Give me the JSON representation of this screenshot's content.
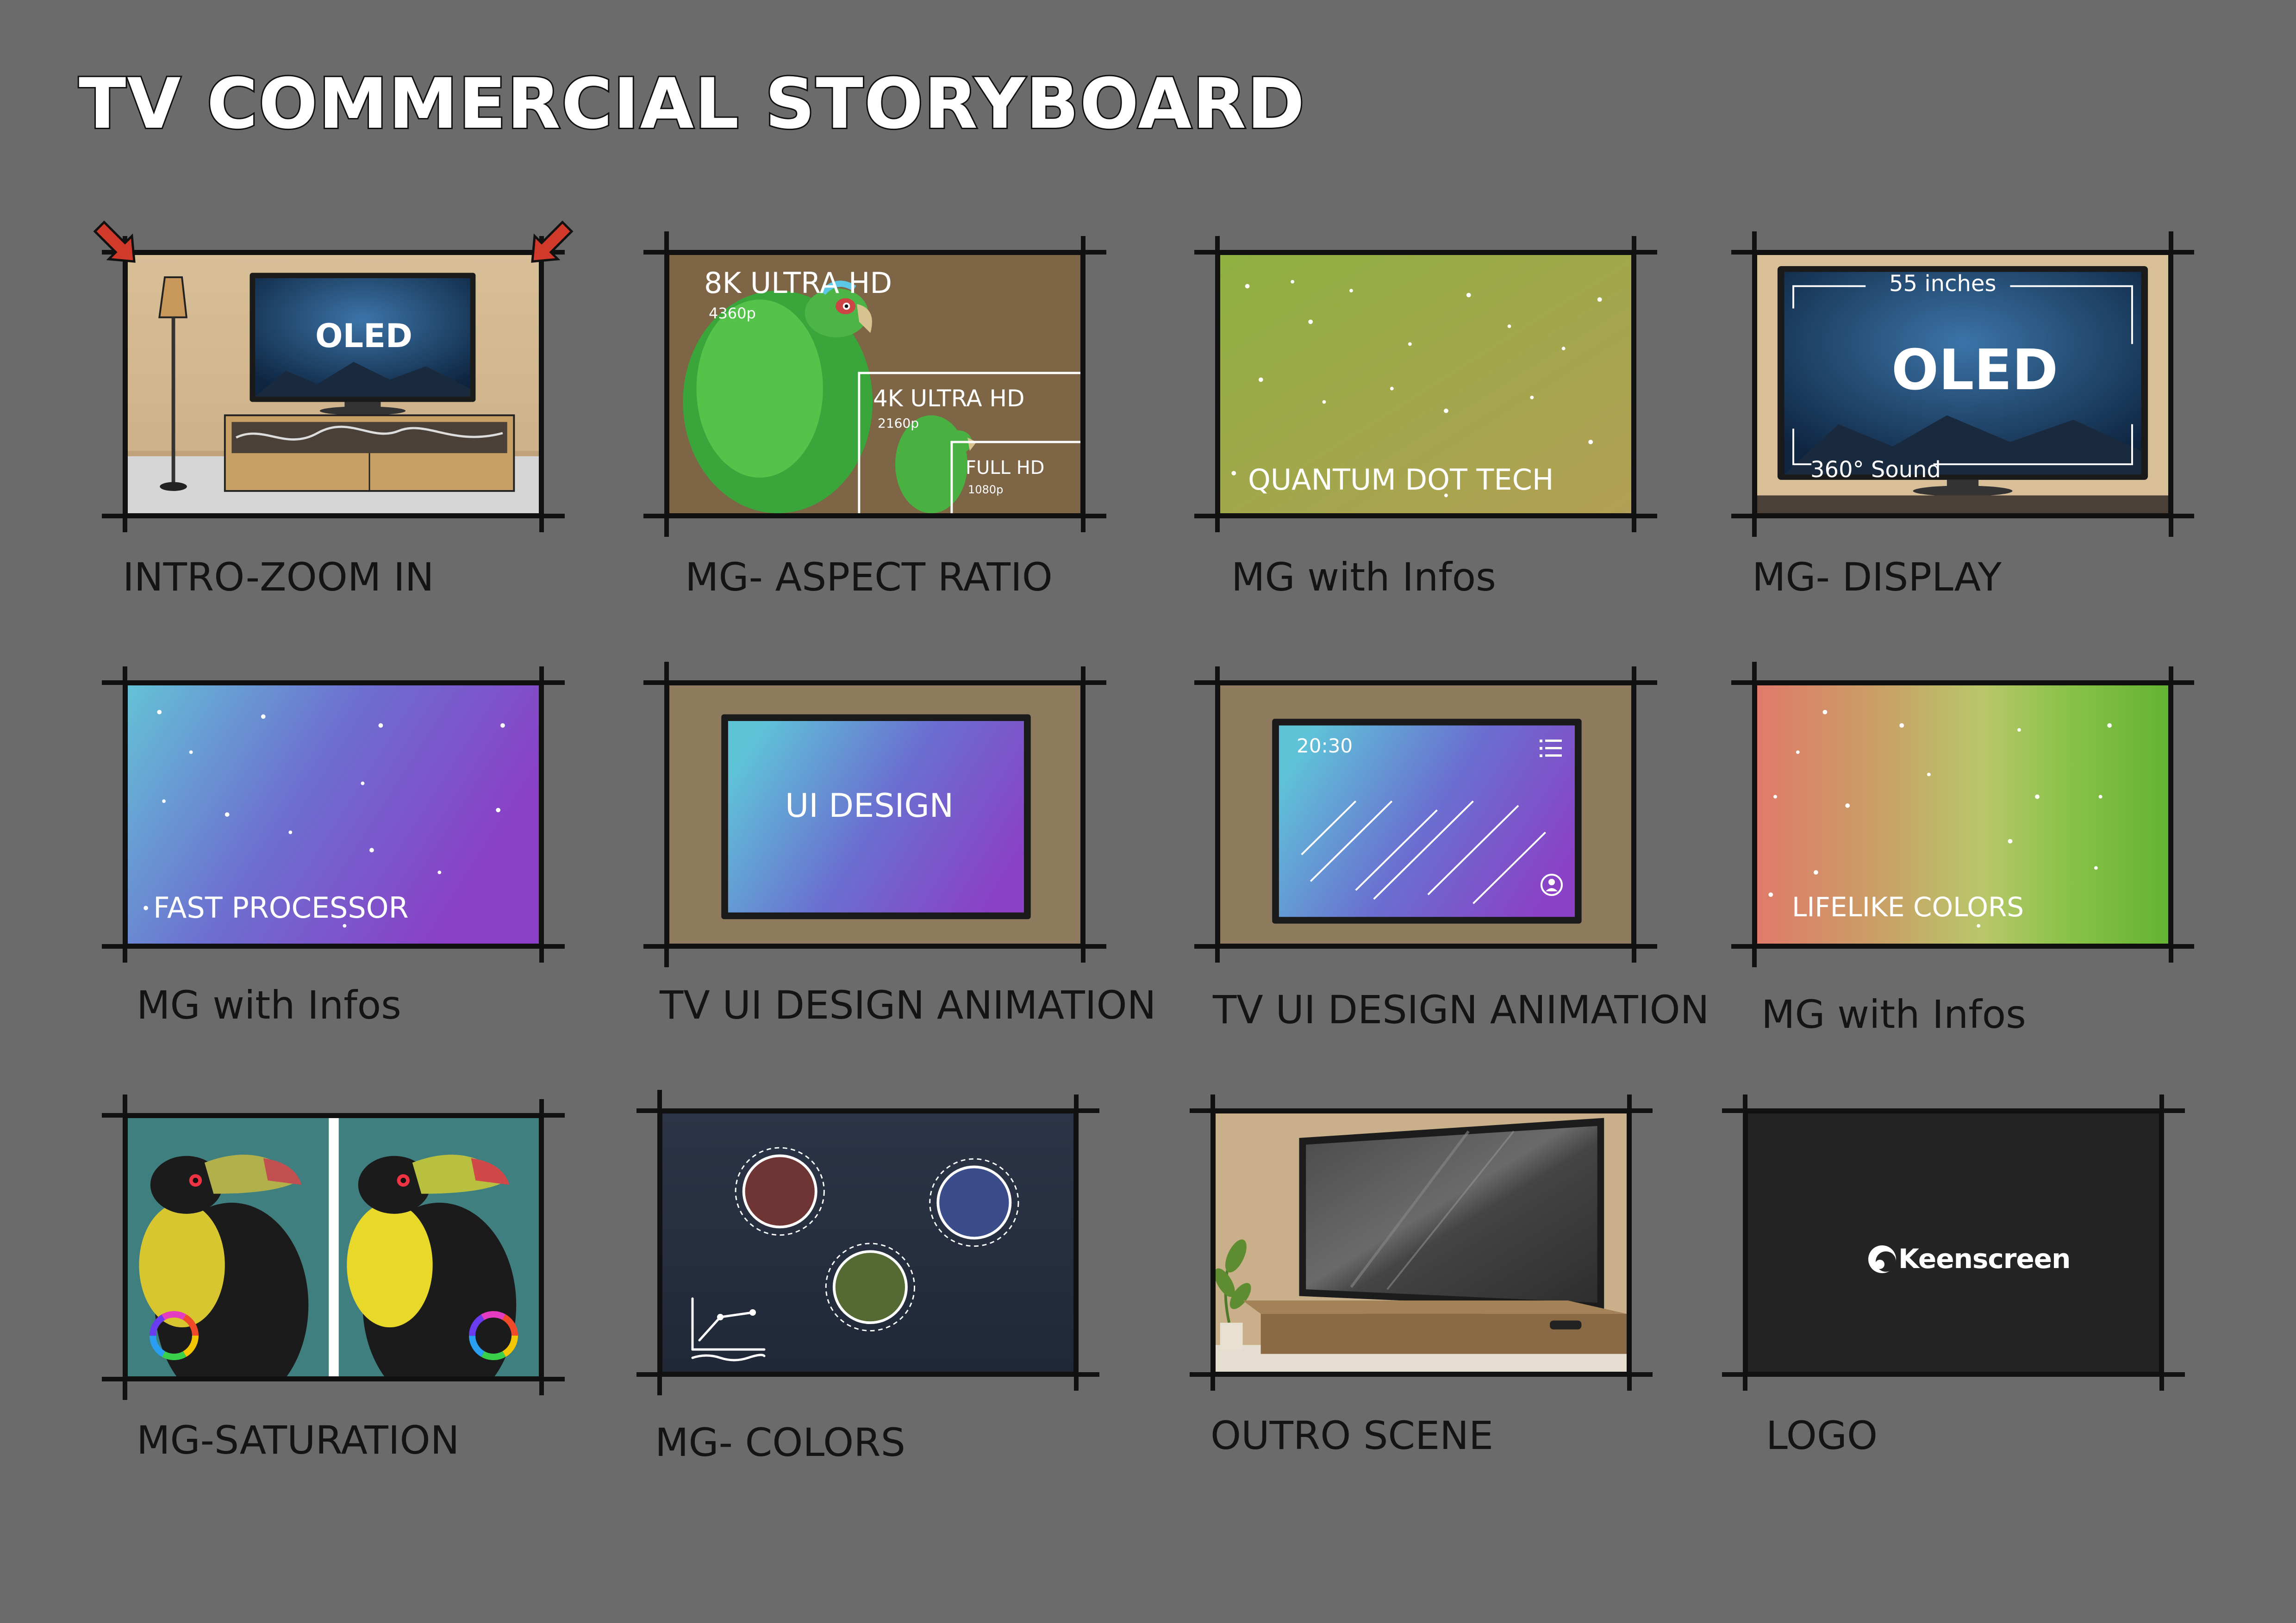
{
  "page_title": "TV Commercial Storyboard",
  "panels": [
    {
      "caption": "INTRO-ZOOM IN",
      "texts": [
        "OLED"
      ]
    },
    {
      "caption": "MG- ASPECT RATIO",
      "texts": [
        "8K ULTRA HD",
        "4360p",
        "4K ULTRA HD",
        "2160p",
        "FULL HD",
        "1080p"
      ]
    },
    {
      "caption": "MG with Infos",
      "texts": [
        "QUANTUM DOT TECH"
      ]
    },
    {
      "caption": "MG- DISPLAY",
      "texts": [
        "55 inches",
        "OLED",
        "360° Sound"
      ]
    },
    {
      "caption": "MG with Infos",
      "texts": [
        "FAST PROCESSOR"
      ]
    },
    {
      "caption": "TV UI DESIGN ANIMATION",
      "texts": [
        "UI DESIGN"
      ]
    },
    {
      "caption": "TV UI DESIGN ANIMATION",
      "texts": [
        "20:30"
      ]
    },
    {
      "caption": "MG with Infos",
      "texts": [
        "LIFELIKE COLORS"
      ]
    },
    {
      "caption": "MG-SATURATION",
      "texts": []
    },
    {
      "caption": "MG- COLORS",
      "texts": []
    },
    {
      "caption": "OUTRO SCENE",
      "texts": []
    },
    {
      "caption": "LOGO",
      "texts": [
        "Keenscreen"
      ]
    }
  ],
  "icons": [
    "arrow-down-right-icon",
    "arrow-down-left-icon",
    "menu-list-icon",
    "user-icon",
    "line-chart-icon",
    "color-wheel-icon",
    "keenscreen-logo-icon"
  ],
  "colors": {
    "background": "#6b6b6b",
    "ink": "#111111",
    "caption": "#141414"
  }
}
